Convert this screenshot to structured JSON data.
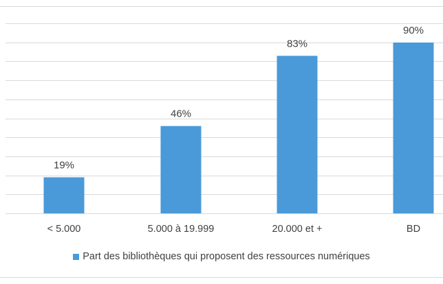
{
  "chart_data": {
    "type": "bar",
    "categories": [
      "< 5.000",
      "5.000 à 19.999",
      "20.000 et +",
      "BD"
    ],
    "series": [
      {
        "name": "Part des bibliothèques qui proposent des ressources numériques",
        "values": [
          19,
          46,
          83,
          90
        ],
        "labels": [
          "19%",
          "46%",
          "83%",
          "90%"
        ]
      }
    ],
    "ylim": [
      0,
      100
    ],
    "grid": true,
    "legend": "bottom",
    "colors": {
      "bar": "#4a9ad9",
      "grid": "#d9d9d9",
      "text": "#404040"
    }
  }
}
